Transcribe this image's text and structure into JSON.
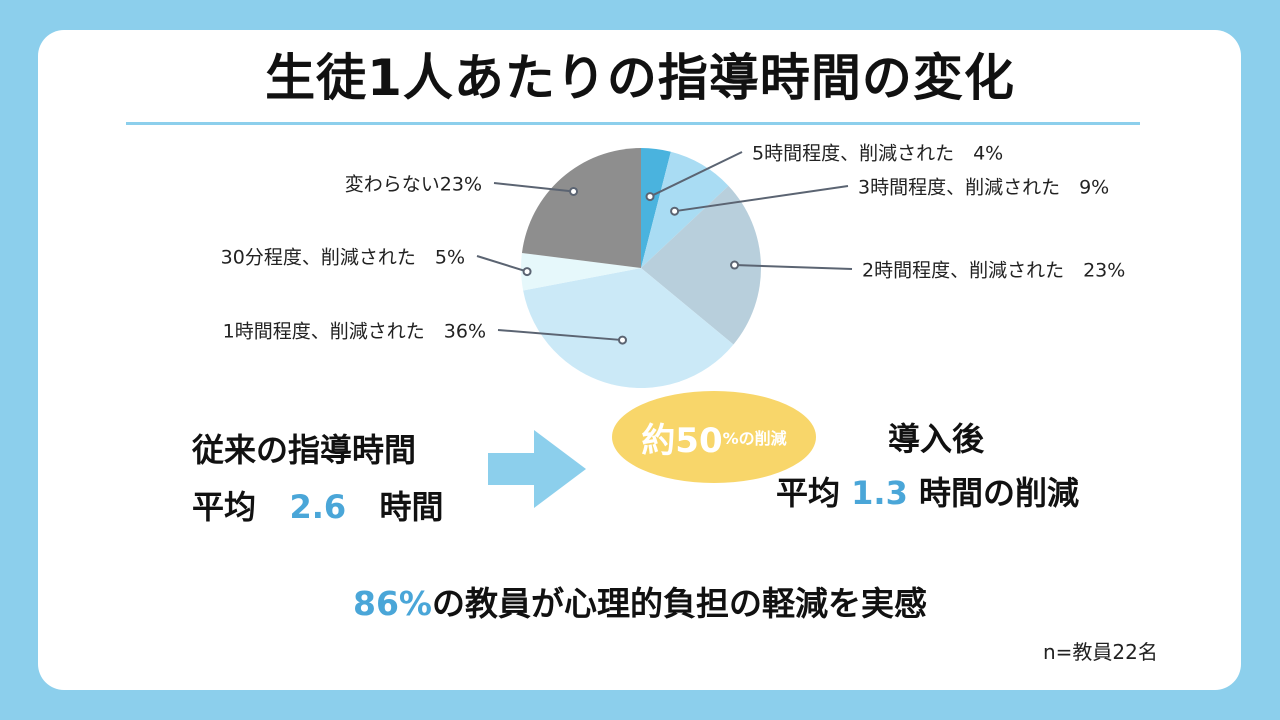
{
  "title": "生徒1人あたりの指導時間の変化",
  "chart_data": {
    "type": "pie",
    "title": "生徒1人あたりの指導時間の変化",
    "slices": [
      {
        "label": "5時間程度、削減された",
        "value": 4,
        "display": "5時間程度、削減された　4%",
        "color": "#4ab3de"
      },
      {
        "label": "3時間程度、削減された",
        "value": 9,
        "display": "3時間程度、削減された　9%",
        "color": "#a9dcf3"
      },
      {
        "label": "2時間程度、削減された",
        "value": 23,
        "display": "2時間程度、削減された　23%",
        "color": "#b8cfdc"
      },
      {
        "label": "1時間程度、削減された",
        "value": 36,
        "display": "1時間程度、削減された　36%",
        "color": "#cbe9f7"
      },
      {
        "label": "30分程度、削減された",
        "value": 5,
        "display": "30分程度、削減された　5%",
        "color": "#e6f8fb"
      },
      {
        "label": "変わらない",
        "value": 23,
        "display": "変わらない23%",
        "color": "#8e8e8e"
      }
    ]
  },
  "before": {
    "heading": "従来の指導時間",
    "avg_prefix": "平均",
    "avg_value": "2.6",
    "avg_unit": "時間"
  },
  "badge": {
    "main": "約50",
    "suffix": "%の削減"
  },
  "after": {
    "heading": "導入後",
    "avg_prefix": "平均",
    "avg_value": "1.3",
    "avg_unit": "時間の削減"
  },
  "summary": {
    "highlight": "86%",
    "text": "の教員が心理的負担の軽減を実感"
  },
  "sample_note": "n=教員22名",
  "colors": {
    "background": "#8ccfec",
    "accent_blue": "#4aa6d8",
    "badge_yellow": "#f8d66a",
    "arrow": "#8ccfec"
  }
}
